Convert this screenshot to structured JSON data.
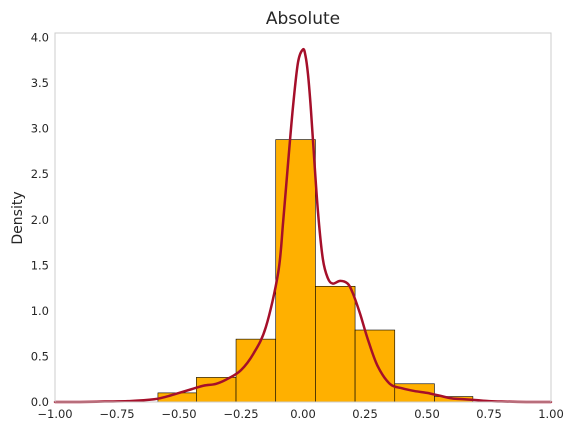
{
  "chart_data": {
    "type": "bar",
    "title": "Absolute",
    "xlabel": "",
    "ylabel": "Density",
    "xlim": [
      -1.0,
      1.0
    ],
    "ylim": [
      0.0,
      4.05
    ],
    "grid": false,
    "x_ticks": [
      "−1.00",
      "−0.75",
      "−0.50",
      "−0.25",
      "0.00",
      "0.25",
      "0.50",
      "0.75",
      "1.00"
    ],
    "x_tick_values": [
      -1.0,
      -0.75,
      -0.5,
      -0.25,
      0.0,
      0.25,
      0.5,
      0.75,
      1.0
    ],
    "y_ticks": [
      "0.0",
      "0.5",
      "1.0",
      "1.5",
      "2.0",
      "2.5",
      "3.0",
      "3.5",
      "4.0"
    ],
    "y_tick_values": [
      0.0,
      0.5,
      1.0,
      1.5,
      2.0,
      2.5,
      3.0,
      3.5,
      4.0
    ],
    "histogram": {
      "color": "#FFB000",
      "edge_color": "#000000",
      "bins": [
        {
          "x0": -0.585,
          "x1": -0.43,
          "density": 0.1
        },
        {
          "x0": -0.43,
          "x1": -0.27,
          "density": 0.27
        },
        {
          "x0": -0.27,
          "x1": -0.11,
          "density": 0.69
        },
        {
          "x0": -0.11,
          "x1": 0.05,
          "density": 2.88
        },
        {
          "x0": 0.05,
          "x1": 0.21,
          "density": 1.27
        },
        {
          "x0": 0.21,
          "x1": 0.37,
          "density": 0.79
        },
        {
          "x0": 0.37,
          "x1": 0.53,
          "density": 0.2
        },
        {
          "x0": 0.53,
          "x1": 0.685,
          "density": 0.06
        }
      ]
    },
    "kde": {
      "color": "#A50F2A",
      "x": [
        -1.0,
        -0.9,
        -0.8,
        -0.7,
        -0.6,
        -0.55,
        -0.5,
        -0.45,
        -0.4,
        -0.35,
        -0.3,
        -0.25,
        -0.2,
        -0.15,
        -0.1,
        -0.08,
        -0.06,
        -0.04,
        -0.02,
        0.0,
        0.01,
        0.02,
        0.03,
        0.04,
        0.06,
        0.08,
        0.1,
        0.12,
        0.15,
        0.18,
        0.2,
        0.23,
        0.26,
        0.3,
        0.35,
        0.4,
        0.45,
        0.5,
        0.55,
        0.6,
        0.65,
        0.7,
        0.75,
        0.8,
        0.9,
        1.0
      ],
      "y": [
        0.0,
        0.0,
        0.005,
        0.01,
        0.03,
        0.06,
        0.1,
        0.14,
        0.18,
        0.2,
        0.26,
        0.35,
        0.53,
        0.82,
        1.42,
        1.98,
        2.63,
        3.25,
        3.73,
        3.87,
        3.8,
        3.6,
        3.28,
        2.88,
        2.1,
        1.57,
        1.36,
        1.3,
        1.33,
        1.3,
        1.2,
        0.97,
        0.7,
        0.4,
        0.2,
        0.15,
        0.12,
        0.1,
        0.07,
        0.04,
        0.03,
        0.02,
        0.01,
        0.005,
        0.0,
        0.0
      ]
    }
  }
}
